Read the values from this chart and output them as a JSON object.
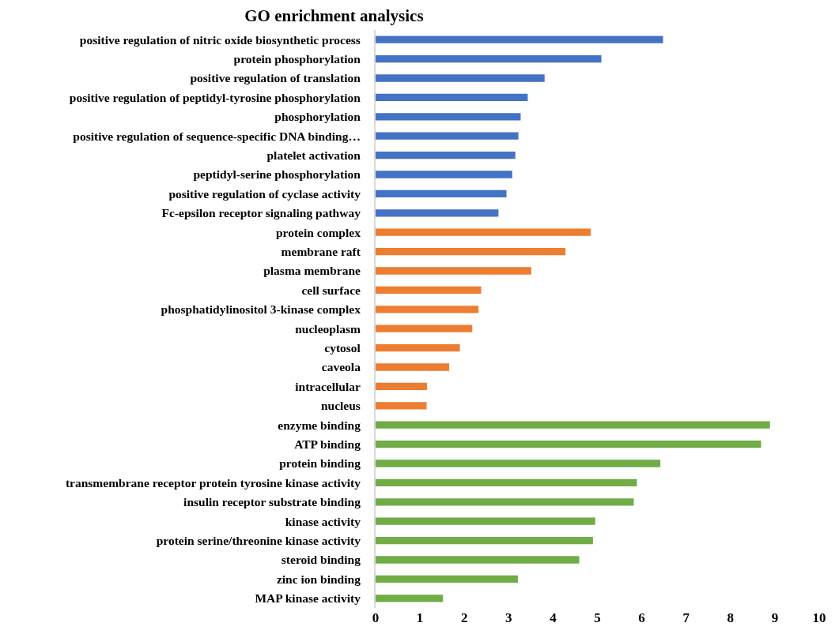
{
  "chart_data": {
    "type": "bar",
    "orientation": "horizontal",
    "title": "GO enrichment analysics",
    "categories": [
      "positive regulation of nitric oxide biosynthetic process",
      "protein phosphorylation",
      "positive regulation of translation",
      "positive regulation of peptidyl-tyrosine phosphorylation",
      "phosphorylation",
      "positive regulation of sequence-specific DNA binding…",
      "platelet activation",
      "peptidyl-serine phosphorylation",
      "positive regulation of cyclase activity",
      "Fc-epsilon receptor signaling pathway",
      "protein complex",
      "membrane raft",
      "plasma membrane",
      "cell surface",
      "phosphatidylinositol 3-kinase complex",
      "nucleoplasm",
      "cytosol",
      "caveola",
      "intracellular",
      "nucleus",
      "enzyme binding",
      "ATP binding",
      "protein binding",
      "transmembrane receptor protein tyrosine kinase activity",
      "insulin receptor substrate binding",
      "kinase activity",
      "protein serine/threonine kinase activity",
      "steroid binding",
      "zinc ion binding",
      "MAP kinase activity"
    ],
    "values": [
      6.48,
      5.09,
      3.81,
      3.43,
      3.27,
      3.22,
      3.15,
      3.08,
      2.95,
      2.77,
      4.85,
      4.28,
      3.51,
      2.38,
      2.32,
      2.18,
      1.9,
      1.66,
      1.16,
      1.15,
      8.89,
      8.69,
      6.42,
      5.89,
      5.82,
      4.95,
      4.9,
      4.59,
      3.21,
      1.52
    ],
    "colors": [
      "#4472c4",
      "#4472c4",
      "#4472c4",
      "#4472c4",
      "#4472c4",
      "#4472c4",
      "#4472c4",
      "#4472c4",
      "#4472c4",
      "#4472c4",
      "#ed7d31",
      "#ed7d31",
      "#ed7d31",
      "#ed7d31",
      "#ed7d31",
      "#ed7d31",
      "#ed7d31",
      "#ed7d31",
      "#ed7d31",
      "#ed7d31",
      "#70ad47",
      "#70ad47",
      "#70ad47",
      "#70ad47",
      "#70ad47",
      "#70ad47",
      "#70ad47",
      "#70ad47",
      "#70ad47",
      "#70ad47"
    ],
    "xlim": [
      0,
      10
    ],
    "xticks": [
      0,
      1,
      2,
      3,
      4,
      5,
      6,
      7,
      8,
      9,
      10
    ],
    "legend": false
  }
}
